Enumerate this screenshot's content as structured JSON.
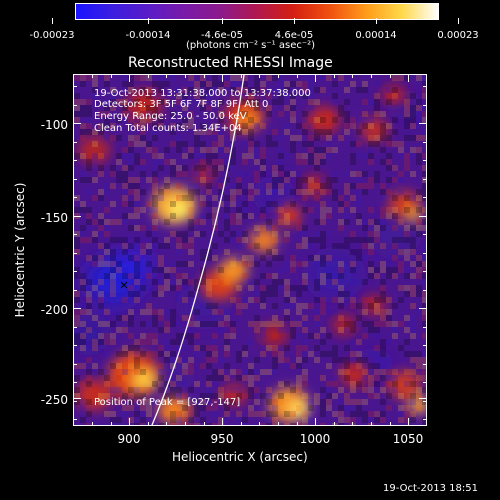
{
  "colorbar": {
    "ticks": [
      "-0.00023",
      "-0.00014",
      "-4.6e-05",
      "4.6e-05",
      "0.00014",
      "0.00023"
    ],
    "unit_label": "(photons cm⁻² s⁻¹ asec⁻²)",
    "colors": [
      "#1a14ff",
      "#3b1ee0",
      "#5a1cc8",
      "#7a1aa8",
      "#8c1a8c",
      "#b0184e",
      "#d41f12",
      "#f05010",
      "#ff9a1a",
      "#ffd84a",
      "#ffffff"
    ]
  },
  "title": "Reconstructed RHESSI Image",
  "info": {
    "line1": "19-Oct-2013 13:31:38.000 to 13:37:38.000",
    "line2": "Detectors: 3F 5F 6F 7F 8F 9F, Att 0",
    "line3": "Energy Range: 25.0 - 50.0 keV",
    "line4": "Clean    Total counts: 1.34E+04",
    "peak": "Position of Peak = [927,-147]"
  },
  "axes": {
    "xlabel": "Heliocentric X (arcsec)",
    "ylabel": "Heliocentric Y (arcsec)",
    "xticks": [
      "900",
      "950",
      "1000",
      "1050"
    ],
    "yticks": [
      "-100",
      "-150",
      "-200",
      "-250"
    ],
    "xlim": [
      868,
      1061
    ],
    "ylim": [
      -264,
      -72
    ]
  },
  "footer_timestamp": "19-Oct-2013 18:51"
}
